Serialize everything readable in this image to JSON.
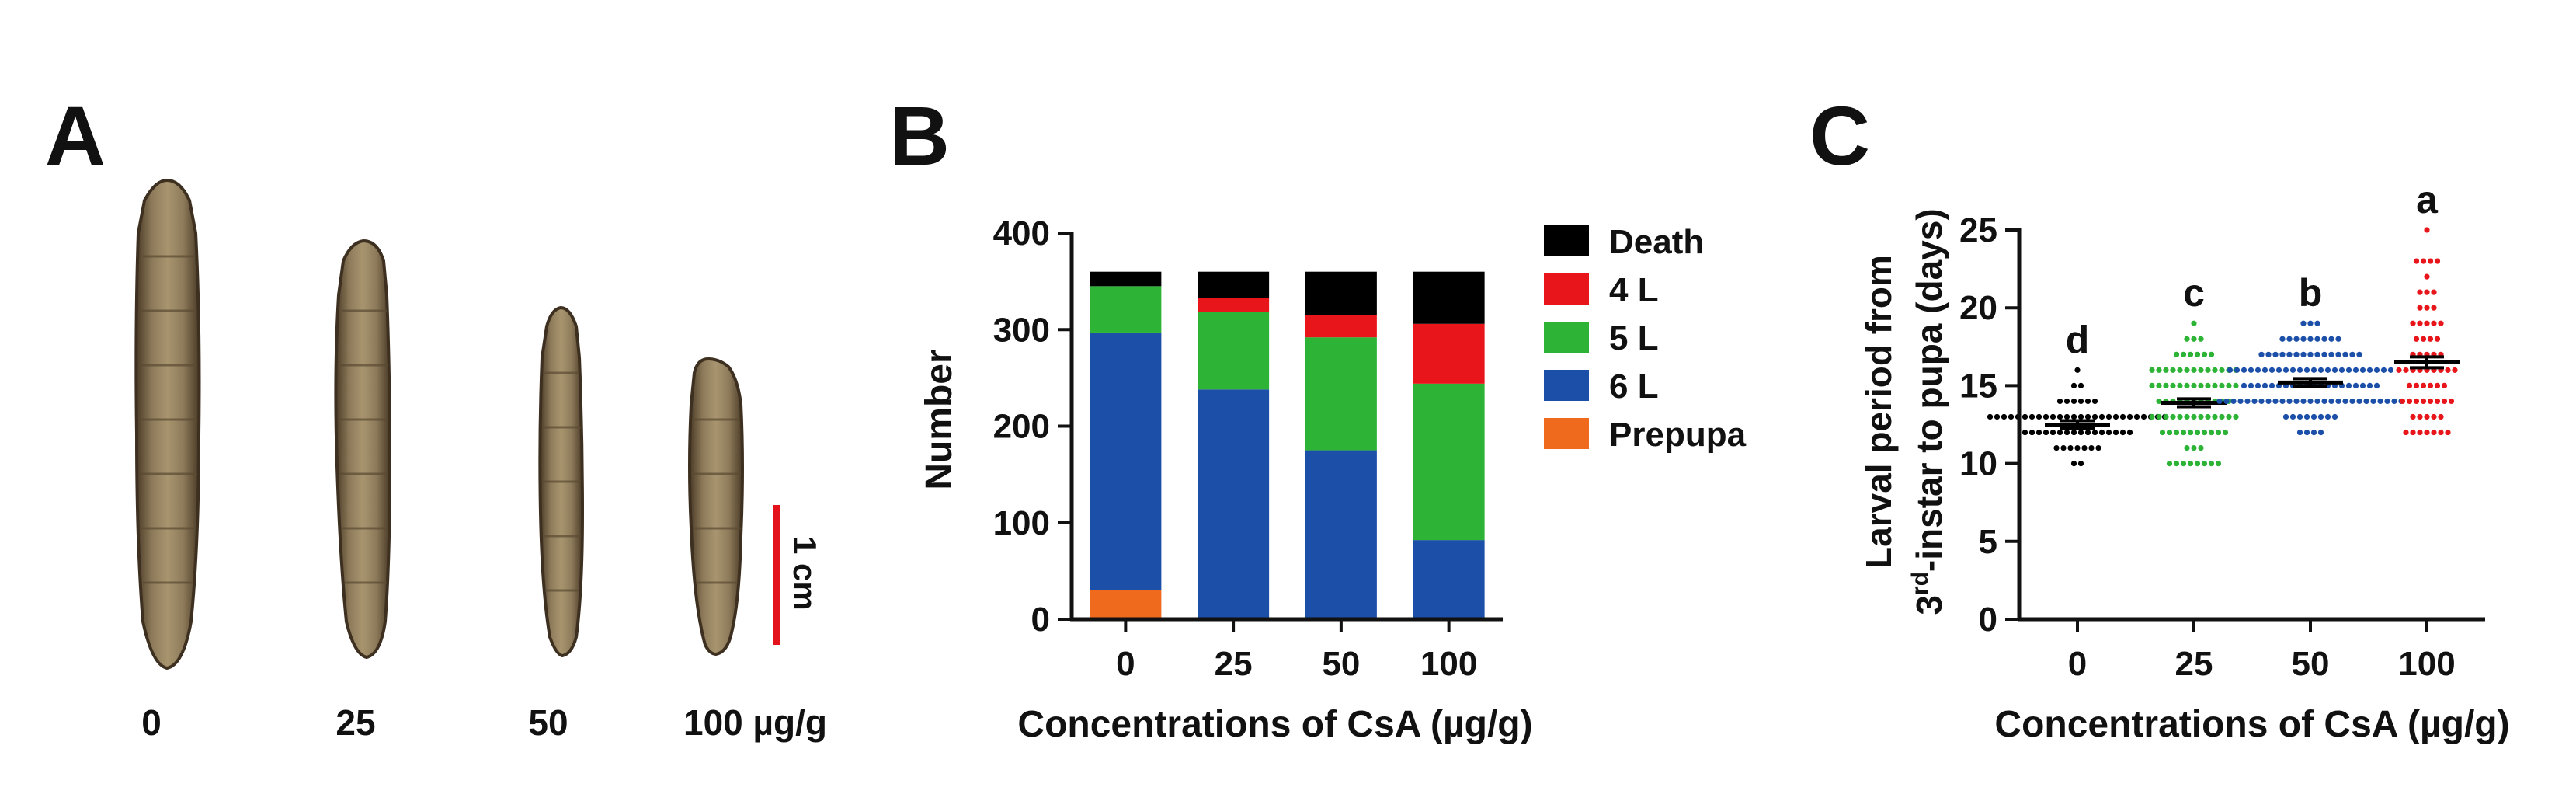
{
  "panel_a": {
    "letter": "A",
    "labels": [
      "0",
      "25",
      "50",
      "100 µg/g"
    ],
    "scale_bar_label": "1 cm",
    "colors": {
      "larva_body": "#8a7656",
      "larva_shade": "#5b4a33",
      "scale_bar": "#e3121b"
    }
  },
  "chart_data": [
    {
      "panel": "B",
      "type": "bar",
      "stacked": true,
      "categories": [
        "0",
        "25",
        "50",
        "100"
      ],
      "series": [
        {
          "name": "Prepupa",
          "color": "#ef6a1d",
          "values": [
            30,
            0,
            0,
            0
          ]
        },
        {
          "name": "6 L",
          "color": "#1c4fa8",
          "values": [
            267,
            238,
            175,
            82
          ]
        },
        {
          "name": "5 L",
          "color": "#2db437",
          "values": [
            48,
            80,
            117,
            162
          ]
        },
        {
          "name": "4 L",
          "color": "#e8151b",
          "values": [
            0,
            15,
            23,
            62
          ]
        },
        {
          "name": "Death",
          "color": "#000000",
          "values": [
            15,
            27,
            45,
            54
          ]
        }
      ],
      "legend_order": [
        "Death",
        "4 L",
        "5 L",
        "6 L",
        "Prepupa"
      ],
      "title": "",
      "xlabel": "Concentrations of CsA (µg/g)",
      "ylabel": "Number",
      "ylim": [
        0,
        400
      ],
      "yticks": [
        0,
        100,
        200,
        300,
        400
      ],
      "legend_position": "right"
    },
    {
      "panel": "C",
      "type": "scatter",
      "categories": [
        "0",
        "25",
        "50",
        "100"
      ],
      "series": [
        {
          "name": "0",
          "color": "#000000",
          "mean": 12.5,
          "sem": 0.25,
          "min": 10,
          "max": 16,
          "n": 60,
          "letter": "d"
        },
        {
          "name": "25",
          "color": "#2db437",
          "mean": 13.9,
          "sem": 0.25,
          "min": 10,
          "max": 19,
          "n": 80,
          "letter": "c"
        },
        {
          "name": "50",
          "color": "#1c4fa8",
          "mean": 15.2,
          "sem": 0.25,
          "min": 12,
          "max": 19,
          "n": 110,
          "letter": "b"
        },
        {
          "name": "100",
          "color": "#e8151b",
          "mean": 16.5,
          "sem": 0.35,
          "min": 12,
          "max": 25,
          "n": 60,
          "letter": "a"
        }
      ],
      "title": "",
      "xlabel": "Concentrations of CsA (µg/g)",
      "ylabel_line1": "Larval period from",
      "ylabel_line2_prefix": "3",
      "ylabel_line2_sup": "rd",
      "ylabel_line2_suffix": "-instar to pupa (days)",
      "ylim": [
        0,
        25
      ],
      "yticks": [
        0,
        5,
        10,
        15,
        20,
        25
      ]
    }
  ]
}
